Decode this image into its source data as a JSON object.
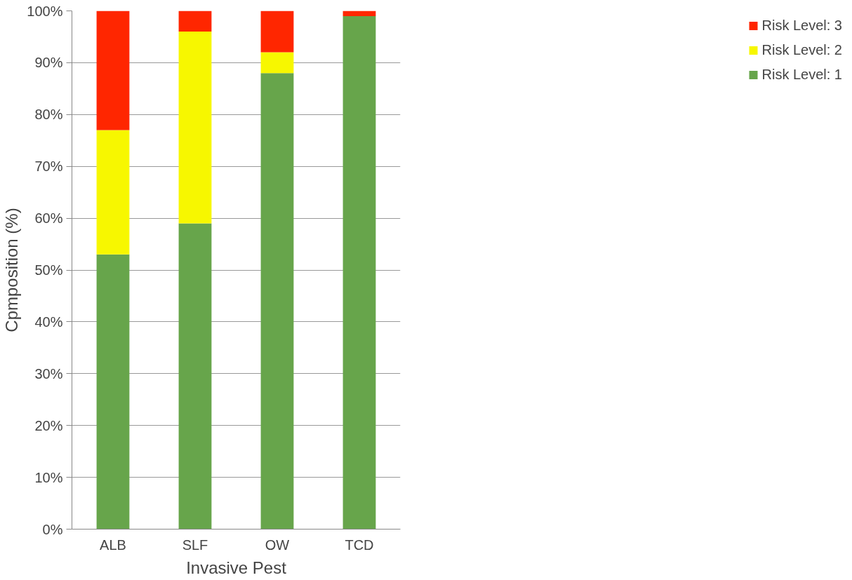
{
  "chart_data": {
    "type": "bar",
    "stacked": true,
    "xlabel": "Invasive Pest",
    "ylabel": "Cpmposition (%)",
    "categories": [
      "ALB",
      "SLF",
      "OW",
      "TCD"
    ],
    "series": [
      {
        "name": "Risk Level: 1",
        "color": "#67a54b",
        "values": [
          53,
          59,
          88,
          99
        ]
      },
      {
        "name": "Risk Level: 2",
        "color": "#f7f700",
        "values": [
          24,
          37,
          4,
          0
        ]
      },
      {
        "name": "Risk Level: 3",
        "color": "#ff2600",
        "values": [
          23,
          4,
          8,
          1
        ]
      }
    ],
    "ylim": [
      0,
      100
    ],
    "yticks": [
      {
        "value": 0,
        "label": "0%"
      },
      {
        "value": 10,
        "label": "10%"
      },
      {
        "value": 20,
        "label": "20%"
      },
      {
        "value": 30,
        "label": "30%"
      },
      {
        "value": 40,
        "label": "40%"
      },
      {
        "value": 50,
        "label": "50%"
      },
      {
        "value": 60,
        "label": "60%"
      },
      {
        "value": 70,
        "label": "70%"
      },
      {
        "value": 80,
        "label": "80%"
      },
      {
        "value": 90,
        "label": "90%"
      },
      {
        "value": 100,
        "label": "100%"
      }
    ],
    "grid": "y",
    "legend": "right"
  }
}
